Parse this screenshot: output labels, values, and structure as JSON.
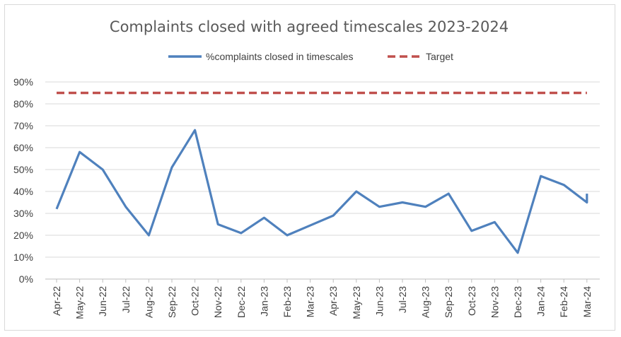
{
  "chart_data": {
    "type": "line",
    "title": "Complaints closed with agreed timescales 2023-2024",
    "xlabel": "",
    "ylabel": "",
    "categories": [
      "Apr-22",
      "May-22",
      "Jun-22",
      "Jul-22",
      "Aug-22",
      "Sep-22",
      "Oct-22",
      "Nov-22",
      "Dec-22",
      "Jan-23",
      "Feb-23",
      "Mar-23",
      "Apr-23",
      "May-23",
      "Jun-23",
      "Jul-23",
      "Aug-23",
      "Sep-23",
      "Oct-23",
      "Nov-23",
      "Dec-23",
      "Jan-24",
      "Feb-24",
      "Mar-24"
    ],
    "ylim": [
      0,
      90
    ],
    "yticks": [
      "0%",
      "10%",
      "20%",
      "30%",
      "40%",
      "50%",
      "60%",
      "70%",
      "80%",
      "90%"
    ],
    "grid": true,
    "legend_position": "top",
    "series": [
      {
        "name": "%complaints closed in timescales",
        "color": "#4f81bd",
        "style": "solid",
        "values": [
          32,
          58,
          50,
          33,
          20,
          51,
          68,
          25,
          21,
          28,
          20,
          24.5,
          29,
          40,
          33,
          35,
          33,
          39,
          22,
          26,
          12,
          47,
          43,
          35
        ],
        "final_tick_value": 39
      },
      {
        "name": "Target",
        "color": "#c0504d",
        "style": "dashed",
        "values": [
          85,
          85,
          85,
          85,
          85,
          85,
          85,
          85,
          85,
          85,
          85,
          85,
          85,
          85,
          85,
          85,
          85,
          85,
          85,
          85,
          85,
          85,
          85,
          85
        ]
      }
    ]
  }
}
